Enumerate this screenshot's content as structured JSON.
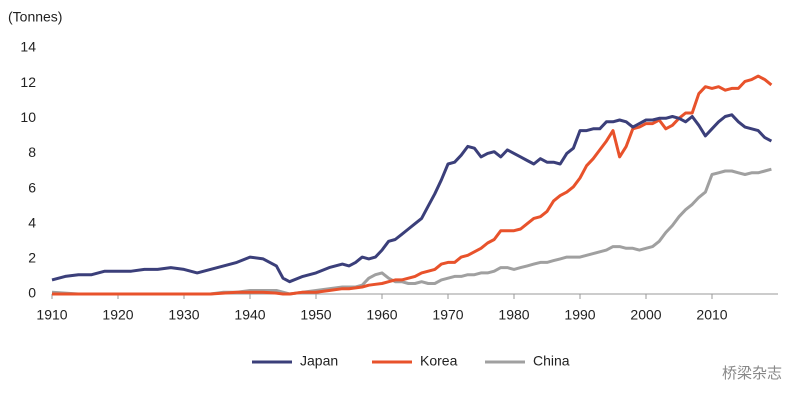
{
  "chart_data": {
    "type": "line",
    "y_label": "(Tonnes)",
    "x": [
      1910,
      1912,
      1914,
      1916,
      1918,
      1920,
      1922,
      1924,
      1926,
      1928,
      1930,
      1932,
      1934,
      1936,
      1938,
      1940,
      1942,
      1944,
      1945,
      1946,
      1948,
      1950,
      1952,
      1954,
      1955,
      1956,
      1957,
      1958,
      1959,
      1960,
      1961,
      1962,
      1963,
      1964,
      1965,
      1966,
      1967,
      1968,
      1969,
      1970,
      1971,
      1972,
      1973,
      1974,
      1975,
      1976,
      1977,
      1978,
      1979,
      1980,
      1981,
      1982,
      1983,
      1984,
      1985,
      1986,
      1987,
      1988,
      1989,
      1990,
      1991,
      1992,
      1993,
      1994,
      1995,
      1996,
      1997,
      1998,
      1999,
      2000,
      2001,
      2002,
      2003,
      2004,
      2005,
      2006,
      2007,
      2008,
      2009,
      2010,
      2011,
      2012,
      2013,
      2014,
      2015,
      2016,
      2017,
      2018,
      2019
    ],
    "series": [
      {
        "name": "Japan",
        "color": "#3b3f7a",
        "values": [
          0.8,
          1.0,
          1.1,
          1.1,
          1.3,
          1.3,
          1.3,
          1.4,
          1.4,
          1.5,
          1.4,
          1.2,
          1.4,
          1.6,
          1.8,
          2.1,
          2.0,
          1.6,
          0.9,
          0.7,
          1.0,
          1.2,
          1.5,
          1.7,
          1.6,
          1.8,
          2.1,
          2.0,
          2.1,
          2.5,
          3.0,
          3.1,
          3.4,
          3.7,
          4.0,
          4.3,
          5.0,
          5.7,
          6.5,
          7.4,
          7.5,
          7.9,
          8.4,
          8.3,
          7.8,
          8.0,
          8.1,
          7.8,
          8.2,
          8.0,
          7.8,
          7.6,
          7.4,
          7.7,
          7.5,
          7.5,
          7.4,
          8.0,
          8.3,
          9.3,
          9.3,
          9.4,
          9.4,
          9.8,
          9.8,
          9.9,
          9.8,
          9.5,
          9.7,
          9.9,
          9.9,
          10.0,
          10.0,
          10.1,
          10.0,
          9.8,
          10.1,
          9.6,
          9.0,
          9.4,
          9.8,
          10.1,
          10.2,
          9.8,
          9.5,
          9.4,
          9.3,
          8.9,
          8.7
        ]
      },
      {
        "name": "Korea",
        "color": "#e8522b",
        "values": [
          0,
          0,
          0,
          0,
          0,
          0,
          0,
          0,
          0,
          0,
          0,
          0,
          0,
          0.05,
          0.1,
          0.1,
          0.1,
          0.05,
          0,
          0,
          0.1,
          0.1,
          0.2,
          0.3,
          0.3,
          0.35,
          0.4,
          0.5,
          0.55,
          0.6,
          0.7,
          0.8,
          0.8,
          0.9,
          1.0,
          1.2,
          1.3,
          1.4,
          1.7,
          1.8,
          1.8,
          2.1,
          2.2,
          2.4,
          2.6,
          2.9,
          3.1,
          3.6,
          3.6,
          3.6,
          3.7,
          4.0,
          4.3,
          4.4,
          4.7,
          5.3,
          5.6,
          5.8,
          6.1,
          6.6,
          7.3,
          7.7,
          8.2,
          8.7,
          9.3,
          7.8,
          8.4,
          9.4,
          9.5,
          9.7,
          9.7,
          9.9,
          9.4,
          9.6,
          10.0,
          10.3,
          10.3,
          11.4,
          11.8,
          11.7,
          11.8,
          11.6,
          11.7,
          11.7,
          12.1,
          12.2,
          12.4,
          12.2,
          11.9
        ]
      },
      {
        "name": "China",
        "color": "#a0a0a0",
        "values": [
          0.1,
          0.05,
          0,
          0,
          0,
          0,
          0,
          0,
          0,
          0,
          0,
          0,
          0,
          0.1,
          0.1,
          0.2,
          0.2,
          0.2,
          0.1,
          0,
          0.1,
          0.2,
          0.3,
          0.4,
          0.4,
          0.4,
          0.5,
          0.9,
          1.1,
          1.2,
          0.9,
          0.7,
          0.7,
          0.6,
          0.6,
          0.7,
          0.6,
          0.6,
          0.8,
          0.9,
          1.0,
          1.0,
          1.1,
          1.1,
          1.2,
          1.2,
          1.3,
          1.5,
          1.5,
          1.4,
          1.5,
          1.6,
          1.7,
          1.8,
          1.8,
          1.9,
          2.0,
          2.1,
          2.1,
          2.1,
          2.2,
          2.3,
          2.4,
          2.5,
          2.7,
          2.7,
          2.6,
          2.6,
          2.5,
          2.6,
          2.7,
          3.0,
          3.5,
          3.9,
          4.4,
          4.8,
          5.1,
          5.5,
          5.8,
          6.8,
          6.9,
          7.0,
          7.0,
          6.9,
          6.8,
          6.9,
          6.9,
          7.0,
          7.1
        ]
      }
    ],
    "xlim": [
      1910,
      2020
    ],
    "xticks": [
      1910,
      1920,
      1930,
      1940,
      1950,
      1960,
      1970,
      1980,
      1990,
      2000,
      2010
    ],
    "ylim": [
      0,
      14
    ],
    "yticks": [
      0,
      2,
      4,
      6,
      8,
      10,
      12,
      14
    ],
    "grid": false,
    "legend": "bottom"
  },
  "watermark": "桥梁杂志"
}
